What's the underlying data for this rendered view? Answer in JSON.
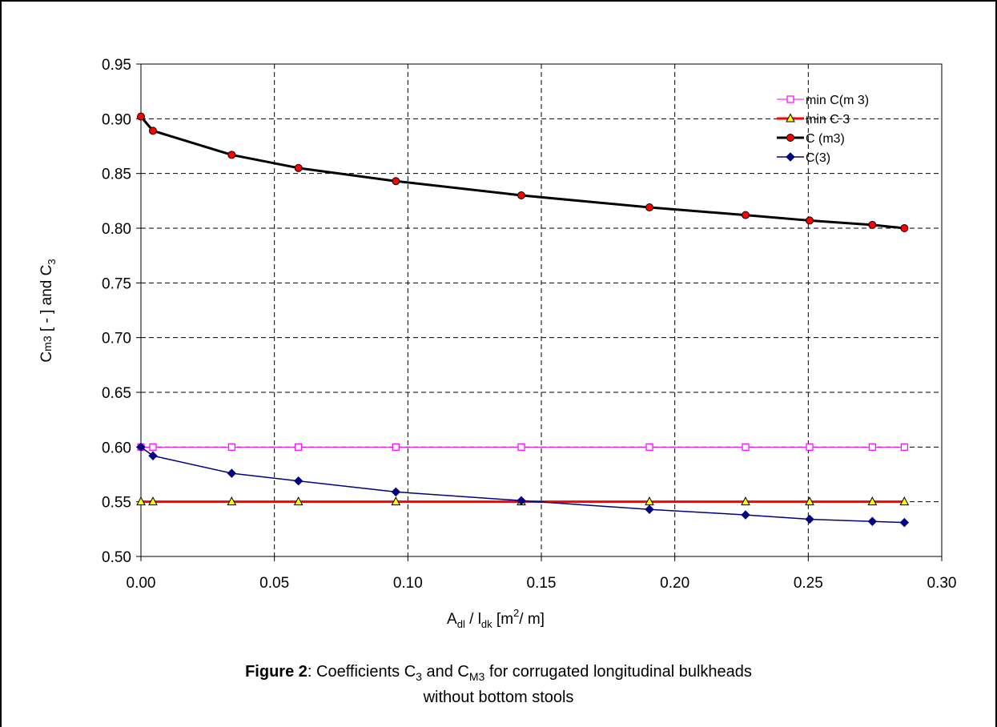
{
  "chart_data": {
    "type": "line",
    "xlim": [
      0,
      0.3
    ],
    "ylim": [
      0.5,
      0.95
    ],
    "x_ticks": [
      "0.00",
      "0.05",
      "0.10",
      "0.15",
      "0.20",
      "0.25",
      "0.30"
    ],
    "y_ticks": [
      "0.50",
      "0.55",
      "0.60",
      "0.65",
      "0.70",
      "0.75",
      "0.80",
      "0.85",
      "0.90",
      "0.95"
    ],
    "grid": true,
    "legend_position": "top-right",
    "x_label": {
      "pre": "A",
      "sub1": "dl",
      "mid": " / l",
      "sub2": "dk",
      "post1": "  [m",
      "sup": "2",
      "post2": "/ m]"
    },
    "y_label": {
      "pre": "C",
      "sub": "m3",
      "post": "  [ - ]  and  C",
      "sub2": "3"
    },
    "x": [
      0.0,
      0.0045,
      0.034,
      0.059,
      0.0955,
      0.1425,
      0.1905,
      0.2265,
      0.2505,
      0.274,
      0.286
    ],
    "series": [
      {
        "name": "min C(m 3)",
        "color": "#ff00ff",
        "marker": "square",
        "line_width": 1,
        "values": [
          0.6,
          0.6,
          0.6,
          0.6,
          0.6,
          0.6,
          0.6,
          0.6,
          0.6,
          0.6,
          0.6
        ]
      },
      {
        "name": "min C 3",
        "color": "#ff0000",
        "marker": "triangle",
        "line_width": 3,
        "values": [
          0.55,
          0.55,
          0.55,
          0.55,
          0.55,
          0.55,
          0.55,
          0.55,
          0.55,
          0.55,
          0.55
        ]
      },
      {
        "name": "C (m3)",
        "color": "#000000",
        "marker": "circle",
        "marker_fill": "#ff0000",
        "line_width": 3,
        "values": [
          0.902,
          0.889,
          0.867,
          0.855,
          0.843,
          0.83,
          0.819,
          0.812,
          0.807,
          0.803,
          0.8
        ]
      },
      {
        "name": "C(3)",
        "color": "#000080",
        "marker": "diamond",
        "line_width": 1.5,
        "values": [
          0.6,
          0.592,
          0.576,
          0.569,
          0.559,
          0.551,
          0.543,
          0.538,
          0.534,
          0.532,
          0.531
        ]
      }
    ]
  },
  "caption": {
    "label": "Figure 2",
    "text_a": ": Coefficients C",
    "sub_a": "3",
    "text_b": " and C",
    "sub_b": "M3",
    "text_c": " for corrugated longitudinal bulkheads",
    "line2": "without bottom stools"
  }
}
